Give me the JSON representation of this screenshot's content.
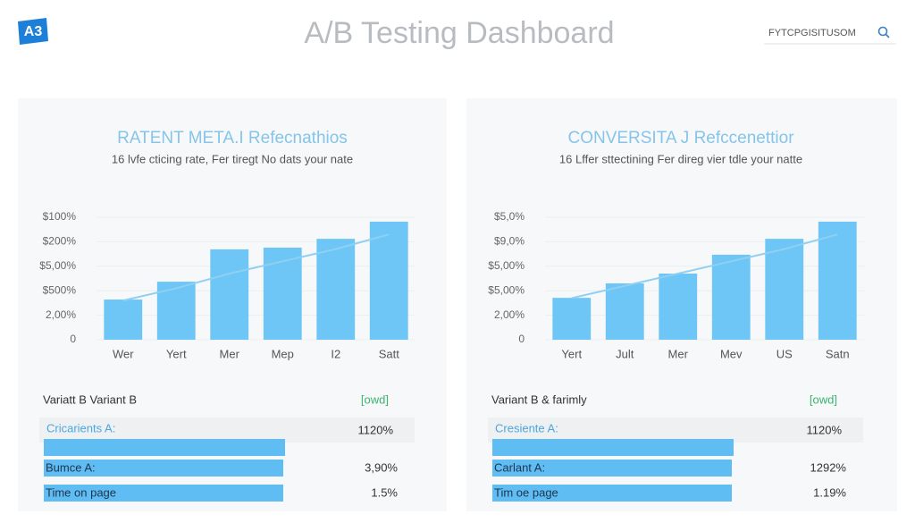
{
  "header": {
    "logo": "A3",
    "title": "A/B Testing Dashboard",
    "search": "FYTCPGISITUSOM"
  },
  "chart_data": [
    {
      "type": "bar",
      "title": "RATENT META.I Refecnathios",
      "subtitle": "16 lvfe cticing rate, Fer tiregt No dats your nate",
      "categories": [
        "Wer",
        "Yert",
        "Mer",
        "Mep",
        "I2",
        "Satt"
      ],
      "series": [
        {
          "type": "bar",
          "color": "#6ec6f6",
          "values": [
            1.64,
            2.37,
            3.69,
            3.76,
            4.12,
            4.82
          ]
        },
        {
          "type": "line",
          "color": "#8fd0f2",
          "values": [
            1.6,
            2.1,
            2.7,
            3.2,
            3.7,
            4.3
          ]
        }
      ],
      "ylim": [
        0,
        5
      ],
      "yticks": [
        0,
        {
          "value": 1,
          "label": "2,00%"
        },
        {
          "value": 2,
          "label": "$500%"
        },
        {
          "value": 3,
          "label": "$5,00%"
        },
        {
          "value": 4,
          "label": "$200%"
        },
        {
          "value": 5,
          "label": "$100%"
        }
      ],
      "grid": true
    },
    {
      "type": "bar",
      "title": "CONVERSITA J Refccenettior",
      "subtitle": "16 Lffer sttectining Fer direg vier tdle your natte",
      "categories": [
        "Yert",
        "Jult",
        "Mer",
        "Mev",
        "US",
        "Satn"
      ],
      "series": [
        {
          "type": "bar",
          "color": "#6ec6f6",
          "values": [
            1.71,
            2.3,
            2.7,
            3.47,
            4.12,
            4.82
          ]
        },
        {
          "type": "line",
          "color": "#8fd0f2",
          "values": [
            1.7,
            2.2,
            2.7,
            3.2,
            3.7,
            4.3
          ]
        }
      ],
      "ylim": [
        0,
        5
      ],
      "yticks": [
        0,
        {
          "value": 1,
          "label": "2,00%"
        },
        {
          "value": 2,
          "label": "$5,00%"
        },
        {
          "value": 3,
          "label": "$5,00%"
        },
        {
          "value": 4,
          "label": "$9,0%"
        },
        {
          "value": 5,
          "label": "$5,0%"
        }
      ],
      "grid": true
    }
  ],
  "panels": [
    {
      "section_title": "Variatt B Variant B",
      "badge": "[owd]",
      "metrics": [
        {
          "label": "Cricarients A:",
          "value": "1120%"
        },
        {
          "label": "Bumce A:",
          "value": "3,90%"
        },
        {
          "label": "Time on page",
          "value": "1.5%"
        }
      ]
    },
    {
      "section_title": "Variant B & farimly",
      "badge": "[owd]",
      "metrics": [
        {
          "label": "Cresiente A:",
          "value": "1120%"
        },
        {
          "label": "Carlant A:",
          "value": "1292%"
        },
        {
          "label": "Tim oe page",
          "value": "1.19%"
        }
      ]
    }
  ]
}
